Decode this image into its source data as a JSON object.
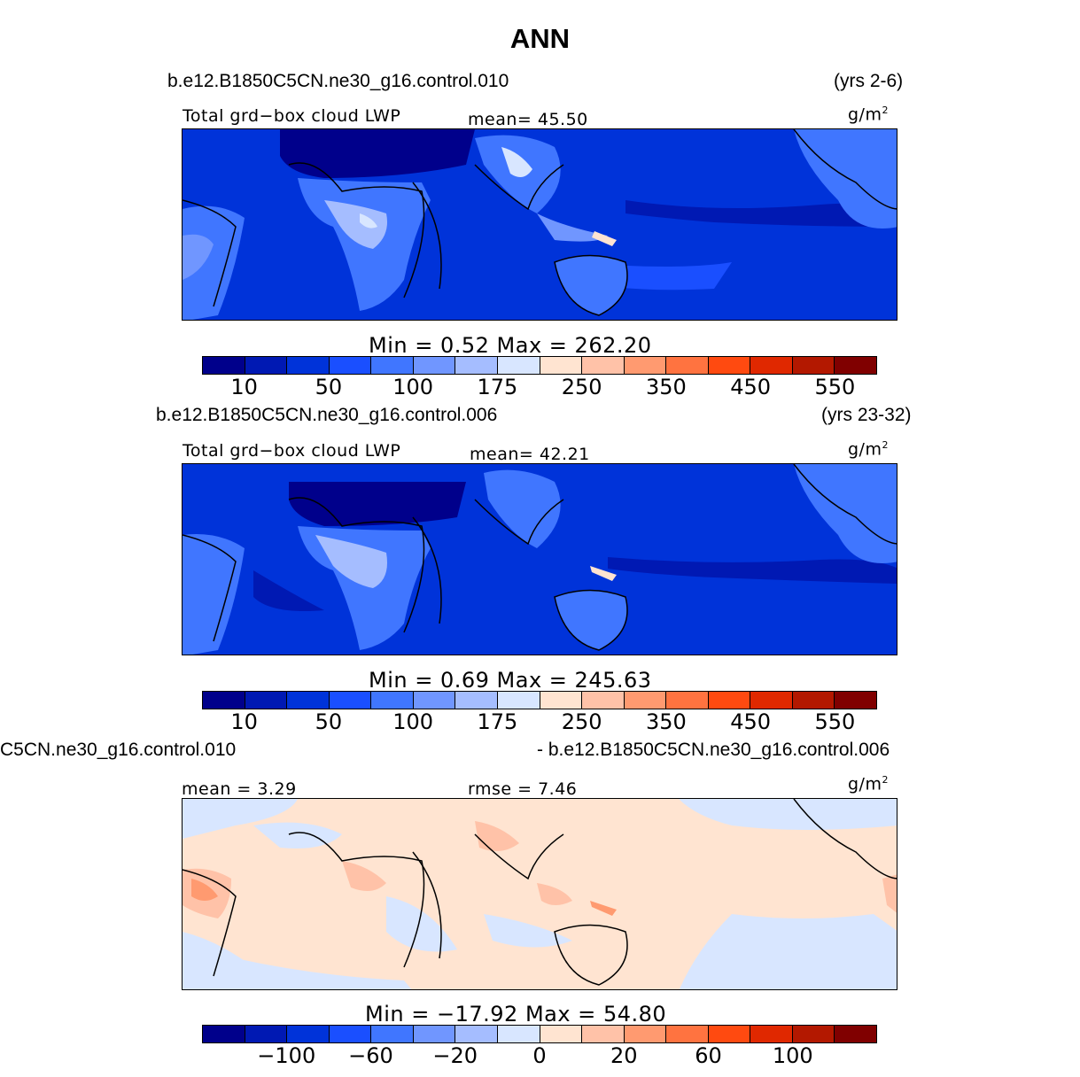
{
  "title": "ANN",
  "units": "g/m",
  "units_sup": "2",
  "colors": [
    "#00008b",
    "#0019b3",
    "#0033d9",
    "#1a4fff",
    "#4076ff",
    "#7096ff",
    "#a5bdff",
    "#d8e6ff",
    "#ffe4d1",
    "#ffc2a8",
    "#ff9a70",
    "#ff7340",
    "#ff4a10",
    "#e02800",
    "#b31800",
    "#800000"
  ],
  "panels": [
    {
      "case": "b.e12.B1850C5CN.ne30_g16.control.010",
      "years": "(yrs 2-6)",
      "varname": "Total grd−box cloud LWP",
      "mean_label": "mean=",
      "mean_value": "45.50",
      "min_label": "Min =",
      "min_value": "0.52",
      "max_label": "Max =",
      "max_value": "262.20",
      "ticks": [
        "10",
        "50",
        "100",
        "175",
        "250",
        "350",
        "450",
        "550"
      ]
    },
    {
      "case": "b.e12.B1850C5CN.ne30_g16.control.006",
      "years": "(yrs 23-32)",
      "varname": "Total grd−box cloud LWP",
      "mean_label": "mean=",
      "mean_value": "42.21",
      "min_label": "Min =",
      "min_value": "0.69",
      "max_label": "Max =",
      "max_value": "245.63",
      "ticks": [
        "10",
        "50",
        "100",
        "175",
        "250",
        "350",
        "450",
        "550"
      ]
    },
    {
      "case_left": "C5CN.ne30_g16.control.010",
      "case_right": "- b.e12.B1850C5CN.ne30_g16.control.006",
      "mean_label": "mean =",
      "mean_value": "3.29",
      "rmse_label": "rmse =",
      "rmse_value": "7.46",
      "min_label": "Min =",
      "min_value": "−17.92",
      "max_label": "Max =",
      "max_value": "54.80",
      "ticks": [
        "−100",
        "−60",
        "−20",
        "0",
        "20",
        "60",
        "100"
      ]
    }
  ]
}
